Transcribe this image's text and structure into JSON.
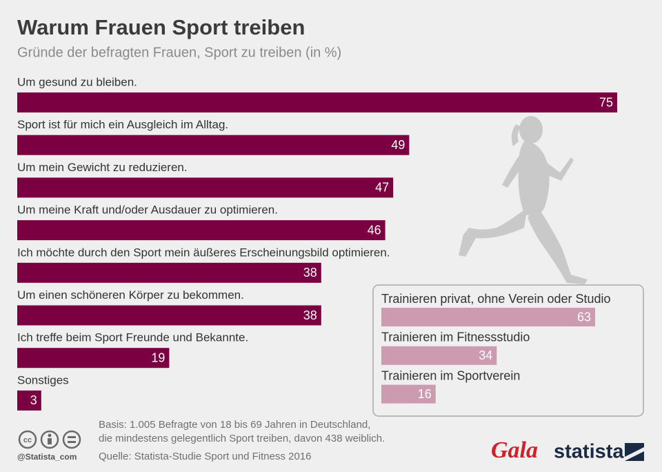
{
  "chart_data": [
    {
      "type": "bar",
      "title": "Warum Frauen Sport treiben",
      "subtitle": "Gründe der befragten Frauen, Sport zu treiben (in %)",
      "categories": [
        "Um gesund zu bleiben.",
        "Sport ist für mich ein Ausgleich im Alltag.",
        "Um mein Gewicht zu reduzieren.",
        "Um meine Kraft und/oder Ausdauer zu optimieren.",
        "Ich möchte durch den Sport mein äußeres Erscheinungsbild optimieren.",
        "Um einen schöneren Körper zu bekommen.",
        "Ich treffe beim Sport Freunde und Bekannte.",
        "Sonstiges"
      ],
      "values": [
        75,
        49,
        47,
        46,
        38,
        38,
        19,
        3
      ],
      "color": "#7b0041"
    },
    {
      "type": "bar",
      "categories": [
        "Trainieren privat, ohne Verein oder Studio",
        "Trainieren im Fitnessstudio",
        "Trainieren im Sportverein"
      ],
      "values": [
        63,
        34,
        16
      ],
      "color": "#cd9bb0"
    }
  ],
  "footer": {
    "basis": [
      "Basis: 1.005 Befragte von 18 bis 69 Jahren in Deutschland,",
      "die mindestens gelegentlich Sport treiben, davon 438 weiblich."
    ],
    "source": "Quelle: Statista-Studie Sport und Fitness 2016",
    "handle": "@Statista_com",
    "partner": "Gala",
    "brand": "statista"
  }
}
